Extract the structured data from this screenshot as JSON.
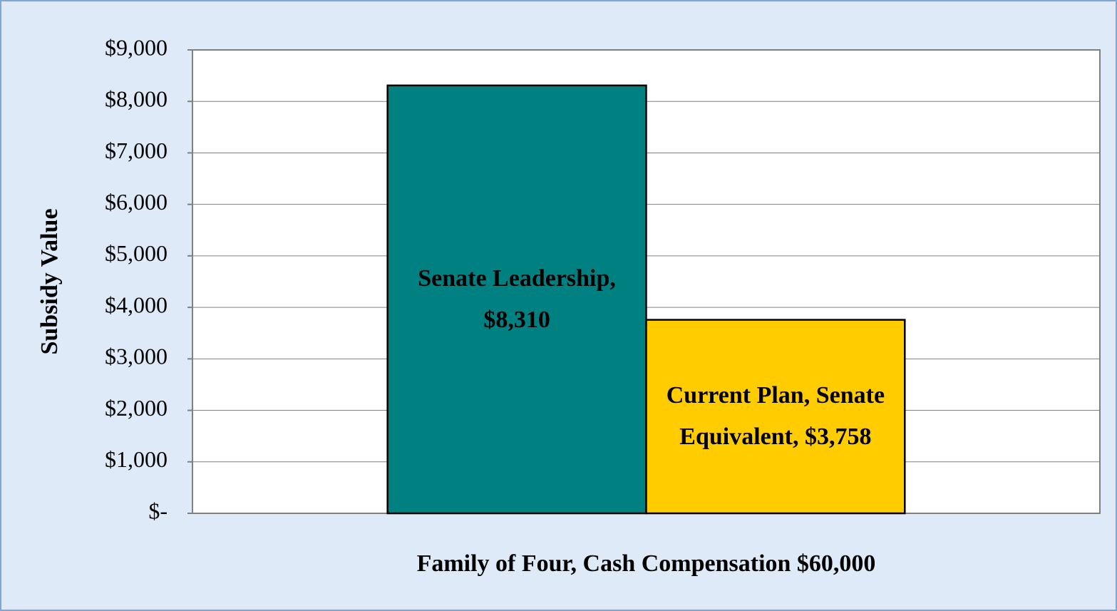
{
  "chart_data": {
    "type": "bar",
    "y_label": "Subsidy Value",
    "categories": [
      "Family of Four, Cash Compensation $60,000"
    ],
    "series": [
      {
        "color": "#008080",
        "values": [
          8310
        ],
        "value_labels": [
          "Senate Leadership, $8,310"
        ]
      },
      {
        "color": "#ffcc00",
        "values": [
          3758
        ],
        "value_labels": [
          "Current Plan, Senate Equivalent, $3,758"
        ]
      }
    ],
    "ylim": [
      0,
      9000
    ],
    "yticks": [
      {
        "value": 0,
        "label": "$-"
      },
      {
        "value": 1000,
        "label": "$1,000"
      },
      {
        "value": 2000,
        "label": "$2,000"
      },
      {
        "value": 3000,
        "label": "$3,000"
      },
      {
        "value": 4000,
        "label": "$4,000"
      },
      {
        "value": 5000,
        "label": "$5,000"
      },
      {
        "value": 6000,
        "label": "$6,000"
      },
      {
        "value": 7000,
        "label": "$7,000"
      },
      {
        "value": 8000,
        "label": "$8,000"
      },
      {
        "value": 9000,
        "label": "$9,000"
      }
    ],
    "grid": true
  }
}
